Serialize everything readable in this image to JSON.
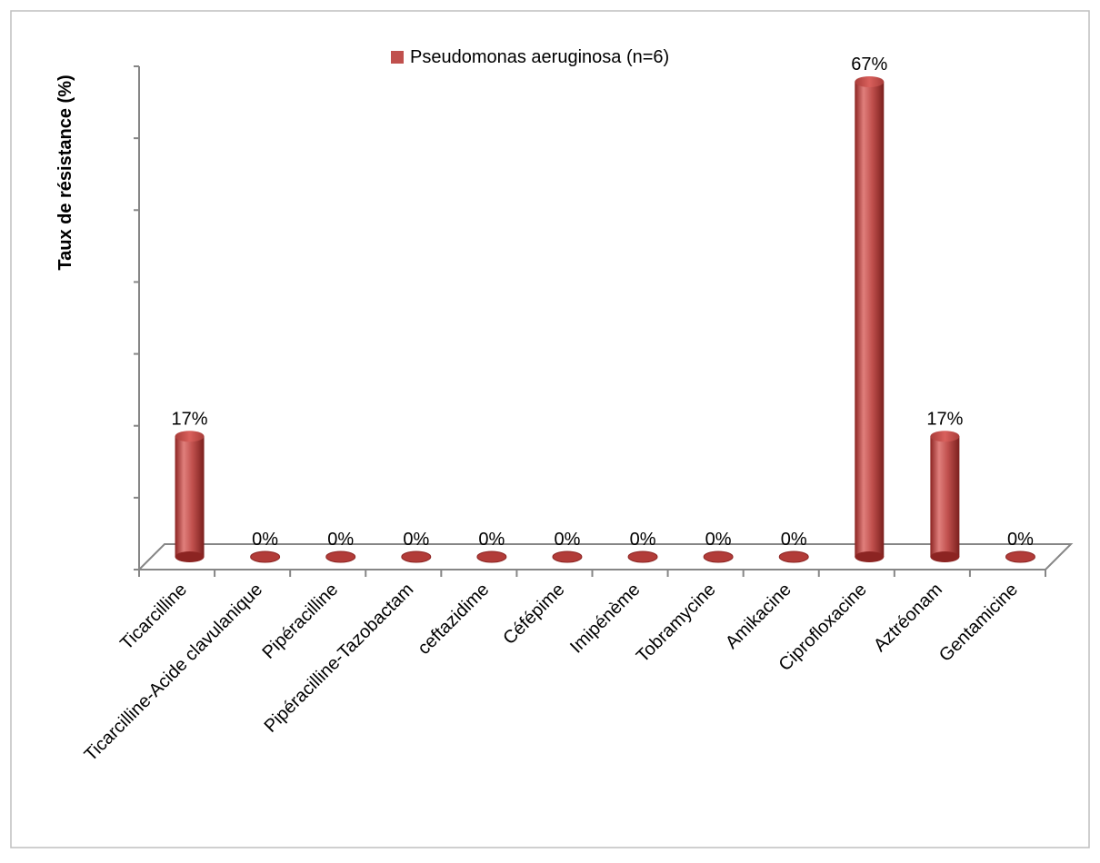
{
  "chart_data": {
    "type": "bar",
    "title": "",
    "ylabel": "Taux de résistance (%)",
    "xlabel": "",
    "categories": [
      "Ticarcilline",
      "Ticarcilline-Acide clavulanique",
      "Pipéracilline",
      "Pipéracilline-Tazobactam",
      "ceftazidime",
      "Céfépime",
      "Imipénème",
      "Tobramycine",
      "Amikacine",
      "Ciprofloxacine",
      "Aztréonam",
      "Gentamicine"
    ],
    "series": [
      {
        "name": "Pseudomonas aeruginosa (n=6)",
        "values": [
          17,
          0,
          0,
          0,
          0,
          0,
          0,
          0,
          0,
          67,
          17,
          0
        ],
        "data_labels": [
          "17%",
          "0%",
          "0%",
          "0%",
          "0%",
          "0%",
          "0%",
          "0%",
          "0%",
          "67%",
          "17%",
          "0%"
        ]
      }
    ],
    "ylim": [
      0,
      70
    ],
    "y_tick_step": 10,
    "y_tick_labels_shown": false,
    "grid": false,
    "legend_position": "top",
    "style": "3d-cylinder",
    "colors": {
      "bar_main": "#c0504d",
      "bar_dark": "#8c2422",
      "bar_light": "#e07f7c",
      "axis": "#868686",
      "frame": "#bfbfbf"
    }
  }
}
